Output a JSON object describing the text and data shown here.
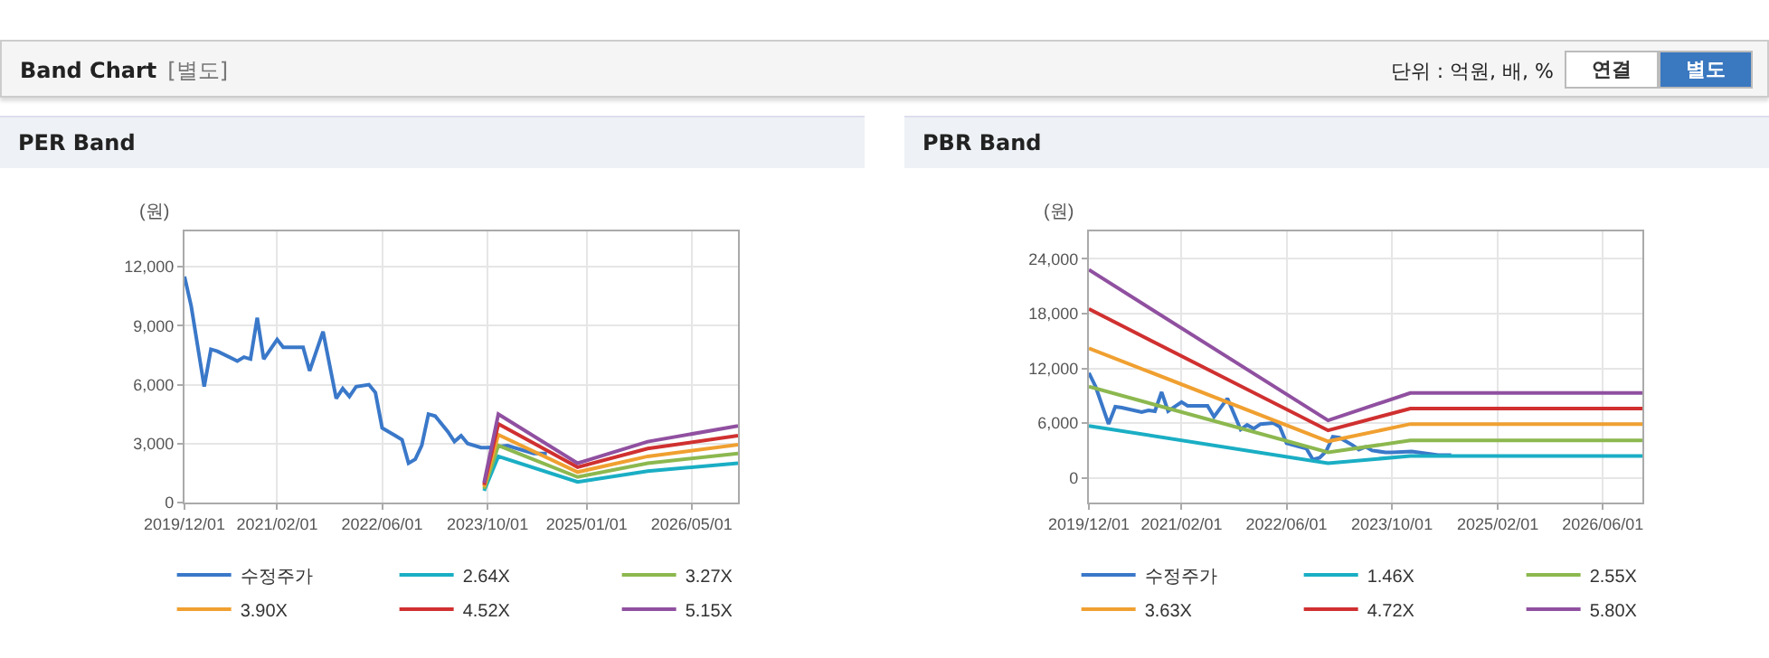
{
  "chart_data": [
    {
      "type": "other",
      "title": "Band Chart",
      "annotations": [
        "[별도]",
        "단위 : 억원, 배, %",
        "연결",
        "별도"
      ]
    },
    {
      "type": "line",
      "title": "PER Band",
      "ylabel": "(원)",
      "grid": true,
      "legend": "bottom",
      "xlim": [
        "2019-12-01",
        "2026-12-01"
      ],
      "xticks": [
        {
          "value": "2019-12-01",
          "label": "2019/12/01"
        },
        {
          "value": "2021-02-01",
          "label": "2021/02/01"
        },
        {
          "value": "2022-06-01",
          "label": "2022/06/01"
        },
        {
          "value": "2023-10-01",
          "label": "2023/10/01"
        },
        {
          "value": "2025-01-01",
          "label": "2025/01/01"
        },
        {
          "value": "2026-05-01",
          "label": "2026/05/01"
        }
      ],
      "ylim": [
        0,
        13800
      ],
      "yticks": [
        0,
        {
          "value": 3000,
          "label": "3,000"
        },
        {
          "value": 6000,
          "label": "6,000"
        },
        {
          "value": 9000,
          "label": "9,000"
        },
        {
          "value": 12000,
          "label": "12,000"
        }
      ],
      "series": [
        {
          "name": "수정주가",
          "color": "#3a78c9",
          "x": [
            "2019-12-01",
            "2020-01",
            "2020-03",
            "2020-04",
            "2020-05",
            "2020-08",
            "2020-09",
            "2020-10",
            "2020-11",
            "2020-12",
            "2021-02",
            "2021-03",
            "2021-06",
            "2021-07",
            "2021-09",
            "2021-11",
            "2021-12",
            "2022-01",
            "2022-02",
            "2022-04",
            "2022-05",
            "2022-06",
            "2022-08",
            "2022-09",
            "2022-10",
            "2022-11",
            "2022-12",
            "2023-01",
            "2023-02",
            "2023-04",
            "2023-05",
            "2023-06",
            "2023-07",
            "2023-09",
            "2023-10",
            "2024-01",
            "2024-05",
            "2024-07"
          ],
          "values": [
            11500,
            10000,
            5900,
            7800,
            7700,
            7200,
            7400,
            7300,
            9400,
            7300,
            8300,
            7900,
            7900,
            6700,
            8700,
            5300,
            5800,
            5400,
            5900,
            6000,
            5600,
            3800,
            3400,
            3200,
            2000,
            2200,
            2900,
            4500,
            4400,
            3600,
            3100,
            3400,
            3000,
            2800,
            2800,
            2900,
            2500,
            2500
          ]
        },
        {
          "name": "2.64X",
          "color": "#1aaec4",
          "x": [
            "2023-09-15",
            "2023-11-20",
            "2024-11-20",
            "2025-10-10",
            "2026-12-01"
          ],
          "values": [
            600,
            2350,
            1050,
            1600,
            2000
          ]
        },
        {
          "name": "3.27X",
          "color": "#8cb84f",
          "x": [
            "2023-09-15",
            "2023-11-20",
            "2024-11-20",
            "2025-10-10",
            "2026-12-01"
          ],
          "values": [
            700,
            2900,
            1300,
            2000,
            2500
          ]
        },
        {
          "name": "3.90X",
          "color": "#f0a030",
          "x": [
            "2023-09-15",
            "2023-11-20",
            "2024-11-20",
            "2025-10-10",
            "2026-12-01"
          ],
          "values": [
            800,
            3450,
            1550,
            2350,
            2950
          ]
        },
        {
          "name": "4.52X",
          "color": "#d03030",
          "x": [
            "2023-09-15",
            "2023-11-20",
            "2024-11-20",
            "2025-10-10",
            "2026-12-01"
          ],
          "values": [
            900,
            4000,
            1800,
            2750,
            3400
          ]
        },
        {
          "name": "5.15X",
          "color": "#9050a0",
          "x": [
            "2023-09-15",
            "2023-11-20",
            "2024-11-20",
            "2025-10-10",
            "2026-12-01"
          ],
          "values": [
            1000,
            4500,
            2000,
            3100,
            3900
          ]
        }
      ]
    },
    {
      "type": "line",
      "title": "PBR Band",
      "ylabel": "(원)",
      "grid": true,
      "legend": "bottom",
      "xlim": [
        "2019-12-01",
        "2026-12-01"
      ],
      "xticks": [
        {
          "value": "2019-12-01",
          "label": "2019/12/01"
        },
        {
          "value": "2021-02-01",
          "label": "2021/02/01"
        },
        {
          "value": "2022-06-01",
          "label": "2022/06/01"
        },
        {
          "value": "2023-10-01",
          "label": "2023/10/01"
        },
        {
          "value": "2025-02-01",
          "label": "2025/02/01"
        },
        {
          "value": "2026-06-01",
          "label": "2026/06/01"
        }
      ],
      "ylim": [
        -2700,
        27000
      ],
      "yticks": [
        0,
        {
          "value": 6000,
          "label": "6,000"
        },
        {
          "value": 12000,
          "label": "12,000"
        },
        {
          "value": 18000,
          "label": "18,000"
        },
        {
          "value": 24000,
          "label": "24,000"
        }
      ],
      "series": [
        {
          "name": "수정주가",
          "color": "#3a78c9",
          "x": [
            "2019-12-01",
            "2020-01",
            "2020-03",
            "2020-04",
            "2020-05",
            "2020-08",
            "2020-09",
            "2020-10",
            "2020-11",
            "2020-12",
            "2021-02",
            "2021-03",
            "2021-06",
            "2021-07",
            "2021-09",
            "2021-11",
            "2021-12",
            "2022-01",
            "2022-02",
            "2022-04",
            "2022-05",
            "2022-06",
            "2022-08",
            "2022-09",
            "2022-10",
            "2022-11",
            "2022-12",
            "2023-01",
            "2023-02",
            "2023-04",
            "2023-05",
            "2023-06",
            "2023-07",
            "2023-09",
            "2023-10",
            "2024-01",
            "2024-05",
            "2024-07"
          ],
          "values": [
            11500,
            10000,
            5900,
            7800,
            7700,
            7200,
            7400,
            7300,
            9400,
            7300,
            8300,
            7900,
            7900,
            6700,
            8700,
            5300,
            5800,
            5400,
            5900,
            6000,
            5600,
            3800,
            3400,
            3200,
            2000,
            2200,
            2900,
            4500,
            4400,
            3600,
            3100,
            3400,
            3000,
            2800,
            2800,
            2900,
            2500,
            2500
          ]
        },
        {
          "name": "1.46X",
          "color": "#1aaec4",
          "x": [
            "2019-12-01",
            "2022-12-10",
            "2023-12-25",
            "2026-12-01"
          ],
          "values": [
            5700,
            1600,
            2400,
            2400
          ]
        },
        {
          "name": "2.55X",
          "color": "#8cb84f",
          "x": [
            "2019-12-01",
            "2022-12-10",
            "2023-12-25",
            "2026-12-01"
          ],
          "values": [
            10000,
            2800,
            4100,
            4100
          ]
        },
        {
          "name": "3.63X",
          "color": "#f0a030",
          "x": [
            "2019-12-01",
            "2022-12-10",
            "2023-12-25",
            "2026-12-01"
          ],
          "values": [
            14200,
            4000,
            5900,
            5900
          ]
        },
        {
          "name": "4.72X",
          "color": "#d03030",
          "x": [
            "2019-12-01",
            "2022-12-10",
            "2023-12-25",
            "2026-12-01"
          ],
          "values": [
            18500,
            5200,
            7600,
            7600
          ]
        },
        {
          "name": "5.80X",
          "color": "#9050a0",
          "x": [
            "2019-12-01",
            "2022-12-10",
            "2023-12-25",
            "2026-12-01"
          ],
          "values": [
            22800,
            6300,
            9300,
            9300
          ]
        }
      ]
    }
  ]
}
